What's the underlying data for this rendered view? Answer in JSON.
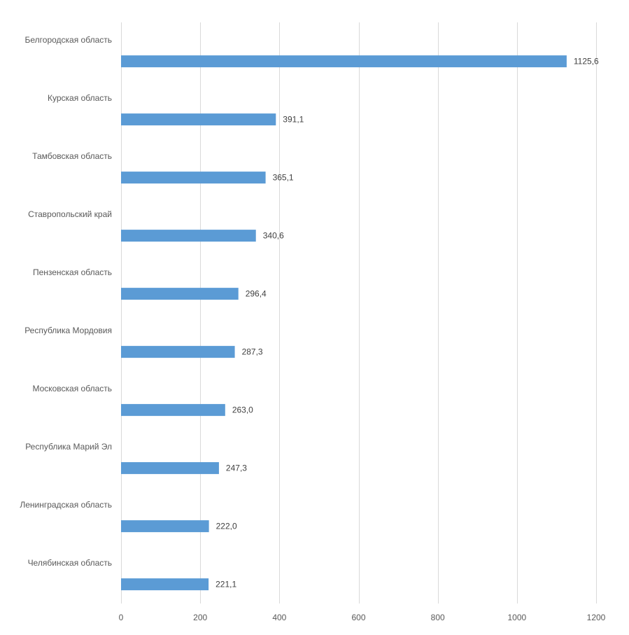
{
  "chart_data": {
    "type": "bar",
    "orientation": "horizontal",
    "categories": [
      "Белгородская область",
      "Курская область",
      "Тамбовская область",
      "Ставропольский край",
      "Пензенская область",
      "Республика Мордовия",
      "Московская область",
      "Республика Марий Эл",
      "Ленинградская область",
      "Челябинская область"
    ],
    "values": [
      1125.6,
      391.1,
      365.1,
      340.6,
      296.4,
      287.3,
      263.0,
      247.3,
      222.0,
      221.1
    ],
    "data_labels": [
      "1125,6",
      "391,1",
      "365,1",
      "340,6",
      "296,4",
      "287,3",
      "263,0",
      "247,3",
      "222,0",
      "221,1"
    ],
    "xlim": [
      0,
      1200
    ],
    "x_ticks": [
      0,
      200,
      400,
      600,
      800,
      1000,
      1200
    ],
    "x_tick_labels": [
      "0",
      "200",
      "400",
      "600",
      "800",
      "1000",
      "1200"
    ],
    "grid": true,
    "legend": "none",
    "bar_color": "#5b9bd5"
  }
}
